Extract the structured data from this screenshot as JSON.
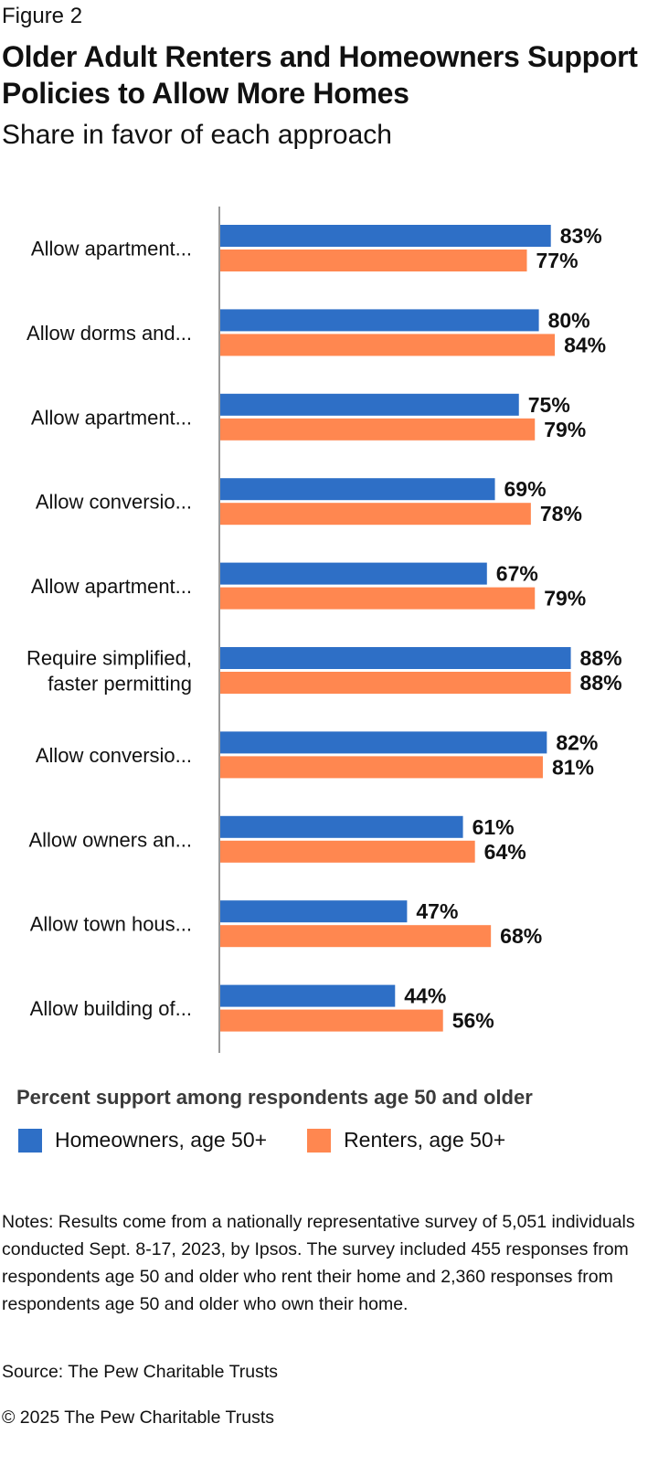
{
  "figure_label": "Figure 2",
  "title": "Older Adult Renters and Homeowners Support Policies to Allow More Homes",
  "subtitle": "Share in favor of each approach",
  "chart_data": {
    "type": "bar",
    "orientation": "horizontal",
    "title": "Older Adult Renters and Homeowners Support Policies to Allow More Homes",
    "subtitle": "Share in favor of each approach",
    "categories": [
      [
        "Allow apartment..."
      ],
      [
        "Allow dorms and..."
      ],
      [
        "Allow apartment..."
      ],
      [
        "Allow conversio..."
      ],
      [
        "Allow apartment..."
      ],
      [
        "Require simplified,",
        "faster permitting"
      ],
      [
        "Allow conversio..."
      ],
      [
        "Allow owners an..."
      ],
      [
        "Allow town hous..."
      ],
      [
        "Allow building of..."
      ]
    ],
    "series": [
      {
        "name": "Homeowners, age 50+",
        "color": "#2E6FC6",
        "values": [
          83,
          80,
          75,
          69,
          67,
          88,
          82,
          61,
          47,
          44
        ]
      },
      {
        "name": "Renters, age 50+",
        "color": "#FF8750",
        "values": [
          77,
          84,
          79,
          78,
          79,
          88,
          81,
          64,
          68,
          56
        ]
      }
    ],
    "value_suffix": "%",
    "xlim": [
      0,
      100
    ],
    "grid": false,
    "legend_position": "bottom-left"
  },
  "legend": {
    "title": "Percent support among respondents age 50 and older",
    "items": [
      {
        "label": "Homeowners, age 50+",
        "color": "#2E6FC6"
      },
      {
        "label": "Renters, age 50+",
        "color": "#FF8750"
      }
    ]
  },
  "notes": "Notes: Results come from a nationally representative survey of 5,051 individuals conducted Sept. 8-17, 2023, by Ipsos. The survey included 455 responses from respondents age 50 and older who rent their home and 2,360 responses from respondents age 50 and older who own their home.",
  "source": "Source: The Pew Charitable Trusts",
  "copyright": "© 2025 The Pew Charitable Trusts"
}
